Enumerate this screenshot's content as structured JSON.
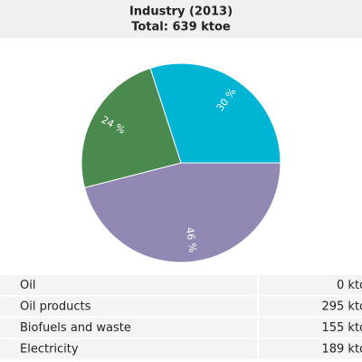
{
  "chart_data": {
    "type": "pie",
    "title": "Industry (2013)",
    "subtitle": "Total: 639 ktoe",
    "categories": [
      "Electricity",
      "Oil products",
      "Biofuels and waste"
    ],
    "values": [
      30,
      46,
      24
    ],
    "value_labels": [
      "30 %",
      "46 %",
      "24 %"
    ],
    "colors": [
      "#00b4d4",
      "#9189b4",
      "#4a8a4f"
    ]
  },
  "table": {
    "rows": [
      [
        "Oil",
        "0 ktoe"
      ],
      [
        "Oil products",
        "295 ktoe"
      ],
      [
        "Biofuels and waste",
        "155 ktoe"
      ],
      [
        "Electricity",
        "189 ktoe"
      ]
    ]
  }
}
